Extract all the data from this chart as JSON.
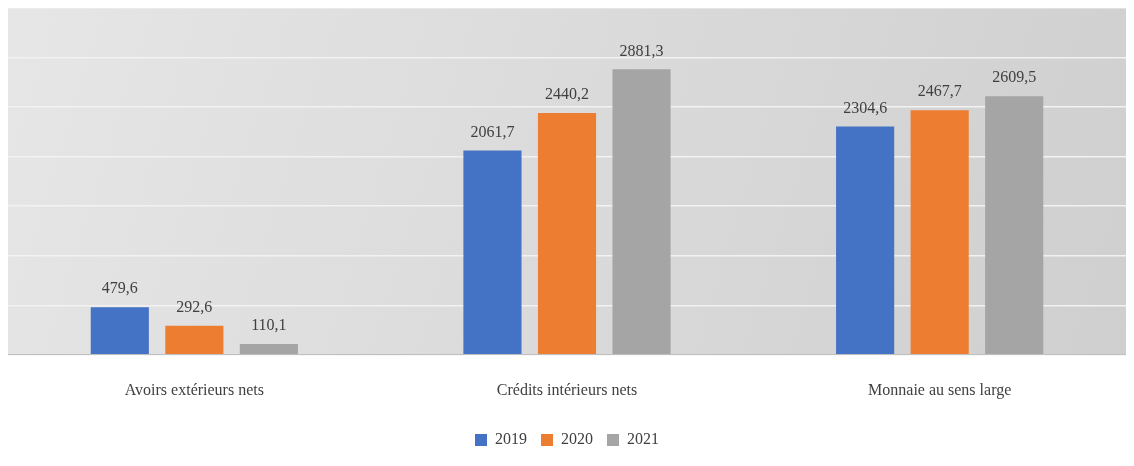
{
  "chart_data": {
    "type": "bar",
    "categories": [
      "Avoirs extérieurs nets",
      "Crédits intérieurs nets",
      "Monnaie au sens large"
    ],
    "series": [
      {
        "name": "2019",
        "color": "#4472c4",
        "values": [
          479.6,
          2061.7,
          2304.6
        ],
        "value_labels": [
          "479,6",
          "2061,7",
          "2304,6"
        ]
      },
      {
        "name": "2020",
        "color": "#ed7d31",
        "values": [
          292.6,
          2440.2,
          2467.7
        ],
        "value_labels": [
          "292,6",
          "2440,2",
          "2467,7"
        ]
      },
      {
        "name": "2021",
        "color": "#a5a5a5",
        "values": [
          110.1,
          2881.3,
          2609.5
        ],
        "value_labels": [
          "110,1",
          "2881,3",
          "2609,5"
        ]
      }
    ],
    "ylim": [
      0,
      3500
    ],
    "yticks": [
      {
        "value": 0,
        "label": null
      },
      {
        "value": 500,
        "label": null
      },
      {
        "value": 1000,
        "label": null
      },
      {
        "value": 1500,
        "label": null
      },
      {
        "value": 2000,
        "label": null
      },
      {
        "value": 2500,
        "label": null
      },
      {
        "value": 3000,
        "label": null
      },
      {
        "value": 3500,
        "label": null
      }
    ],
    "tick_labels": "x",
    "grid": "y",
    "legend": "bottom"
  }
}
